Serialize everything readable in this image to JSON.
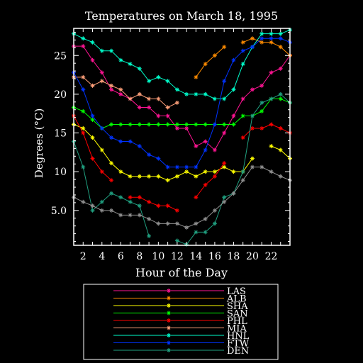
{
  "chart_data": {
    "type": "line",
    "title": "Temperatures on March 18, 1995",
    "xlabel": "Hour of the Day",
    "ylabel": "Degrees (°C)",
    "xlim": [
      1,
      24
    ],
    "ylim": [
      0.5,
      28.5
    ],
    "x_ticks": [
      2,
      4,
      6,
      8,
      10,
      12,
      14,
      16,
      18,
      20,
      22
    ],
    "y_ticks": [
      5,
      10,
      15,
      20,
      25
    ],
    "y_tick_labels": [
      "5.0",
      "10",
      "15",
      "20",
      "25"
    ],
    "grid": false,
    "legend_position": "bottom",
    "x": [
      1,
      2,
      3,
      4,
      5,
      6,
      7,
      8,
      9,
      10,
      11,
      12,
      13,
      14,
      15,
      16,
      17,
      18,
      19,
      20,
      21,
      22,
      23,
      24
    ],
    "series": [
      {
        "name": "LAS",
        "color": "#ff1493",
        "values": [
          26.2,
          26.2,
          24.4,
          22.8,
          20.6,
          20.0,
          19.4,
          18.3,
          18.3,
          17.2,
          17.2,
          15.6,
          15.6,
          13.3,
          13.9,
          12.8,
          15.0,
          17.2,
          19.4,
          20.6,
          21.1,
          22.8,
          23.3,
          25.0
        ]
      },
      {
        "name": "ALB",
        "color": "#ff8c00",
        "values": [
          null,
          null,
          null,
          null,
          null,
          null,
          null,
          null,
          null,
          null,
          null,
          null,
          null,
          22.2,
          23.9,
          25.0,
          26.1,
          null,
          26.7,
          27.2,
          26.7,
          26.7,
          26.1,
          25.0
        ]
      },
      {
        "name": "SHA",
        "color": "#ffff00",
        "values": [
          16.1,
          15.6,
          14.4,
          12.8,
          11.1,
          10.0,
          9.4,
          9.4,
          9.4,
          9.4,
          8.9,
          9.4,
          10.0,
          9.4,
          10.0,
          10.0,
          10.6,
          10.0,
          10.0,
          11.7,
          null,
          13.3,
          12.8,
          11.7
        ]
      },
      {
        "name": "SAN",
        "color": "#00ff00",
        "values": [
          18.3,
          17.8,
          16.7,
          15.6,
          16.1,
          16.1,
          16.1,
          16.1,
          16.1,
          16.1,
          16.1,
          16.1,
          16.1,
          16.1,
          16.1,
          16.1,
          16.1,
          16.1,
          17.2,
          17.2,
          17.8,
          19.4,
          19.4,
          18.9
        ]
      },
      {
        "name": "PHL",
        "color": "#ff0000",
        "values": [
          17.2,
          15.0,
          11.7,
          10.0,
          8.9,
          null,
          6.7,
          6.7,
          6.1,
          5.6,
          5.6,
          5.0,
          null,
          6.7,
          8.3,
          9.4,
          11.1,
          null,
          14.4,
          15.6,
          15.6,
          16.1,
          15.6,
          15.0
        ]
      },
      {
        "name": "MIA",
        "color": "#ffa07a",
        "values": [
          22.2,
          22.2,
          21.1,
          21.7,
          21.1,
          20.6,
          19.4,
          20.0,
          19.4,
          19.4,
          18.3,
          18.9,
          null,
          null,
          null,
          null,
          null,
          null,
          null,
          null,
          null,
          null,
          null,
          null
        ]
      },
      {
        "name": "HNL",
        "color": "#00ffcc",
        "values": [
          27.8,
          27.2,
          26.7,
          25.6,
          25.6,
          24.4,
          23.9,
          23.3,
          21.7,
          22.2,
          21.7,
          20.6,
          20.0,
          20.0,
          20.0,
          19.4,
          19.4,
          20.6,
          23.9,
          26.1,
          27.8,
          27.8,
          27.8,
          28.3
        ]
      },
      {
        "name": "FTW",
        "color": "#0033ff",
        "values": [
          22.8,
          20.6,
          17.2,
          15.6,
          14.4,
          13.9,
          13.9,
          13.3,
          12.2,
          11.7,
          10.6,
          10.6,
          10.6,
          10.6,
          12.8,
          16.1,
          21.7,
          24.4,
          25.6,
          26.1,
          27.2,
          27.2,
          27.2,
          26.7
        ]
      },
      {
        "name": "DEN",
        "color": "#20a080",
        "values": [
          13.9,
          10.6,
          5.0,
          6.1,
          7.2,
          6.7,
          6.1,
          5.6,
          1.7,
          null,
          null,
          1.1,
          0.6,
          2.2,
          2.2,
          3.3,
          6.7,
          7.2,
          10.0,
          17.2,
          18.9,
          19.4,
          20.0,
          18.9
        ]
      },
      {
        "name": "",
        "color": "#909090",
        "values": [
          6.7,
          6.1,
          5.6,
          5.0,
          5.0,
          4.4,
          4.4,
          4.4,
          3.9,
          3.3,
          3.3,
          3.3,
          2.8,
          3.3,
          3.9,
          5.0,
          6.1,
          7.2,
          8.9,
          10.6,
          10.6,
          10.0,
          9.4,
          8.9
        ]
      }
    ]
  }
}
